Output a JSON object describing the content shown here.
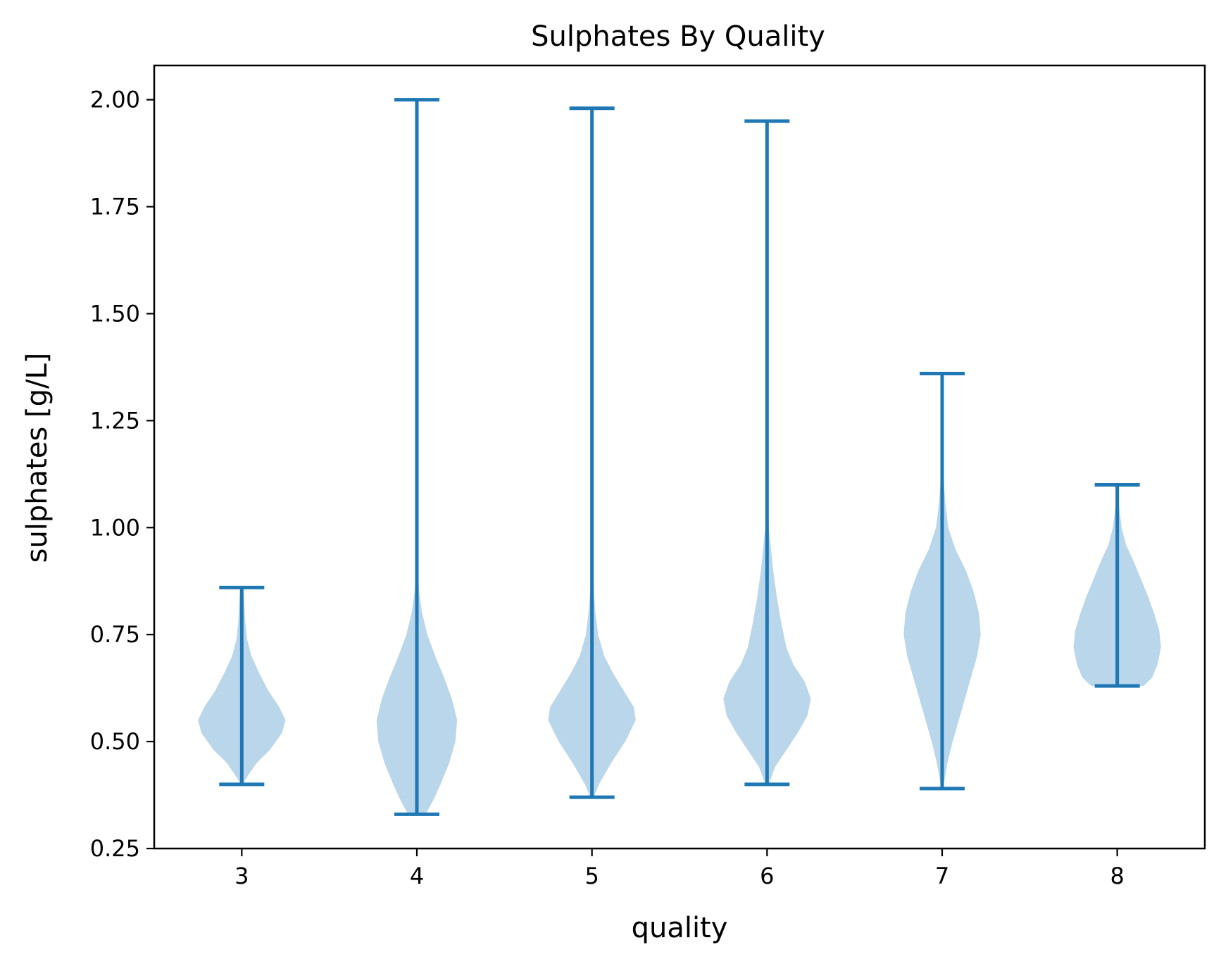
{
  "chart_data": {
    "type": "violin",
    "title": "Sulphates By Quality",
    "xlabel": "quality",
    "ylabel": "sulphates [g/L]",
    "categories": [
      "3",
      "4",
      "5",
      "6",
      "7",
      "8"
    ],
    "ylim": [
      0.25,
      2.08
    ],
    "yticks": [
      "0.25",
      "0.50",
      "0.75",
      "1.00",
      "1.25",
      "1.50",
      "1.75",
      "2.00"
    ],
    "grid": false,
    "colors": {
      "line": "#1f77b4",
      "body": "#bad6ea",
      "frame": "#000000"
    },
    "violins": [
      {
        "quality": "3",
        "min": 0.4,
        "max": 0.86,
        "profile": [
          [
            0.4,
            0.01
          ],
          [
            0.42,
            0.07
          ],
          [
            0.45,
            0.17
          ],
          [
            0.48,
            0.32
          ],
          [
            0.52,
            0.46
          ],
          [
            0.55,
            0.5
          ],
          [
            0.58,
            0.43
          ],
          [
            0.62,
            0.3
          ],
          [
            0.66,
            0.2
          ],
          [
            0.7,
            0.11
          ],
          [
            0.74,
            0.06
          ],
          [
            0.78,
            0.04
          ],
          [
            0.82,
            0.03
          ],
          [
            0.86,
            0.02
          ]
        ]
      },
      {
        "quality": "4",
        "min": 0.33,
        "max": 2.0,
        "profile": [
          [
            0.33,
            0.1
          ],
          [
            0.36,
            0.18
          ],
          [
            0.4,
            0.27
          ],
          [
            0.45,
            0.37
          ],
          [
            0.5,
            0.44
          ],
          [
            0.55,
            0.46
          ],
          [
            0.6,
            0.4
          ],
          [
            0.65,
            0.31
          ],
          [
            0.7,
            0.21
          ],
          [
            0.75,
            0.12
          ],
          [
            0.8,
            0.06
          ],
          [
            0.85,
            0.025
          ],
          [
            0.9,
            0.012
          ],
          [
            1.0,
            0.004
          ],
          [
            1.2,
            0.002
          ],
          [
            1.6,
            0.001
          ],
          [
            2.0,
            0.001
          ]
        ]
      },
      {
        "quality": "5",
        "min": 0.37,
        "max": 1.98,
        "profile": [
          [
            0.37,
            0.02
          ],
          [
            0.4,
            0.08
          ],
          [
            0.45,
            0.22
          ],
          [
            0.5,
            0.38
          ],
          [
            0.55,
            0.5
          ],
          [
            0.58,
            0.48
          ],
          [
            0.62,
            0.36
          ],
          [
            0.66,
            0.24
          ],
          [
            0.7,
            0.14
          ],
          [
            0.75,
            0.07
          ],
          [
            0.8,
            0.04
          ],
          [
            0.85,
            0.02
          ],
          [
            0.9,
            0.01
          ],
          [
            1.0,
            0.005
          ],
          [
            1.2,
            0.002
          ],
          [
            1.6,
            0.001
          ],
          [
            1.98,
            0.001
          ]
        ]
      },
      {
        "quality": "6",
        "min": 0.4,
        "max": 1.95,
        "profile": [
          [
            0.4,
            0.02
          ],
          [
            0.44,
            0.09
          ],
          [
            0.48,
            0.22
          ],
          [
            0.52,
            0.35
          ],
          [
            0.56,
            0.46
          ],
          [
            0.6,
            0.5
          ],
          [
            0.64,
            0.43
          ],
          [
            0.68,
            0.3
          ],
          [
            0.72,
            0.22
          ],
          [
            0.78,
            0.16
          ],
          [
            0.84,
            0.11
          ],
          [
            0.9,
            0.07
          ],
          [
            0.96,
            0.04
          ],
          [
            1.0,
            0.02
          ],
          [
            1.1,
            0.01
          ],
          [
            1.3,
            0.005
          ],
          [
            1.6,
            0.002
          ],
          [
            1.95,
            0.001
          ]
        ]
      },
      {
        "quality": "7",
        "min": 0.39,
        "max": 1.36,
        "profile": [
          [
            0.39,
            0.01
          ],
          [
            0.45,
            0.06
          ],
          [
            0.5,
            0.12
          ],
          [
            0.55,
            0.19
          ],
          [
            0.6,
            0.26
          ],
          [
            0.65,
            0.33
          ],
          [
            0.7,
            0.4
          ],
          [
            0.75,
            0.44
          ],
          [
            0.8,
            0.42
          ],
          [
            0.85,
            0.36
          ],
          [
            0.9,
            0.27
          ],
          [
            0.95,
            0.15
          ],
          [
            1.0,
            0.07
          ],
          [
            1.05,
            0.04
          ],
          [
            1.1,
            0.02
          ],
          [
            1.2,
            0.01
          ],
          [
            1.36,
            0.003
          ]
        ]
      },
      {
        "quality": "8",
        "min": 0.63,
        "max": 1.1,
        "profile": [
          [
            0.63,
            0.3
          ],
          [
            0.65,
            0.4
          ],
          [
            0.68,
            0.46
          ],
          [
            0.72,
            0.5
          ],
          [
            0.76,
            0.48
          ],
          [
            0.8,
            0.42
          ],
          [
            0.84,
            0.35
          ],
          [
            0.88,
            0.27
          ],
          [
            0.92,
            0.19
          ],
          [
            0.96,
            0.1
          ],
          [
            1.0,
            0.05
          ],
          [
            1.05,
            0.02
          ],
          [
            1.1,
            0.005
          ]
        ]
      }
    ]
  }
}
